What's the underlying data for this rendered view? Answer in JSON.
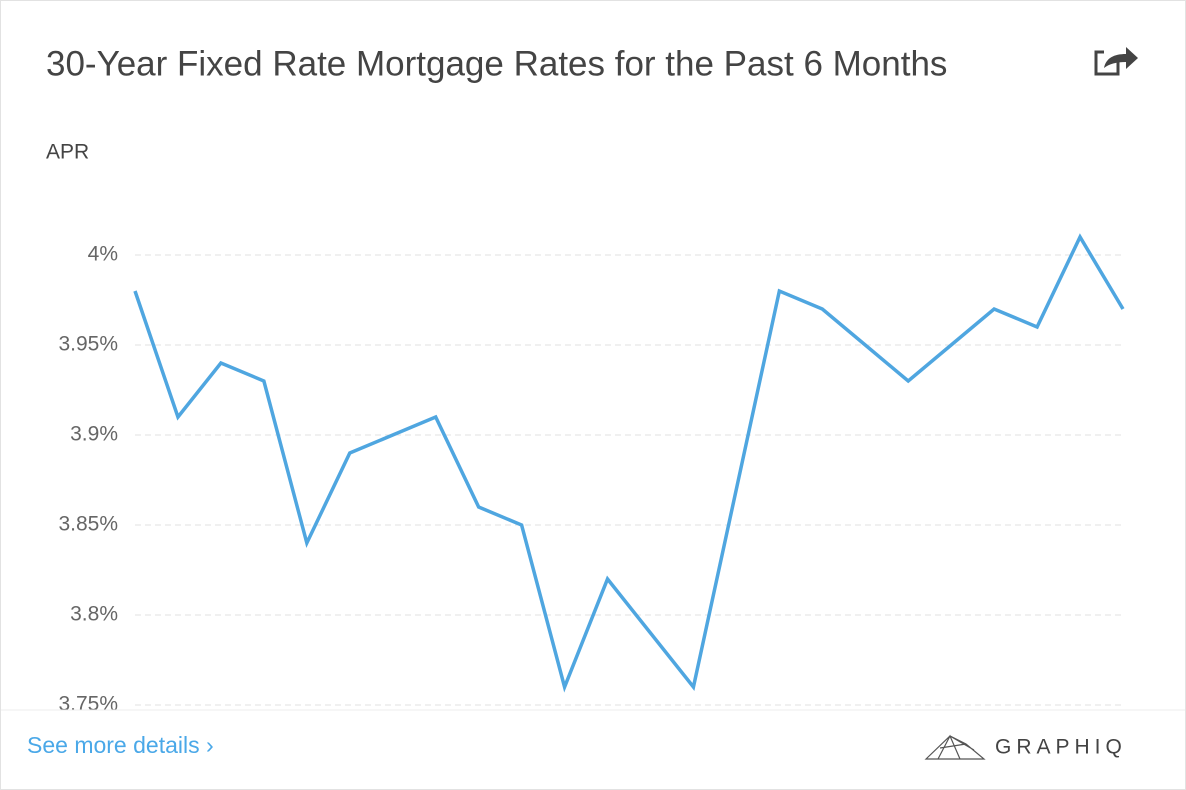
{
  "chart_data": {
    "type": "line",
    "title": "30-Year Fixed Rate Mortgage Rates for the Past 6 Months",
    "y_label": "APR",
    "categories": [
      null,
      null,
      null,
      null,
      null,
      null,
      null,
      null,
      null,
      null,
      null,
      null,
      null,
      null,
      null,
      null,
      null,
      null,
      null,
      null,
      null,
      null,
      null,
      null
    ],
    "values": [
      3.98,
      3.91,
      3.94,
      3.93,
      3.84,
      3.89,
      3.9,
      3.91,
      3.86,
      3.85,
      3.76,
      3.82,
      3.79,
      3.76,
      3.87,
      3.98,
      3.97,
      3.95,
      3.93,
      3.95,
      3.97,
      3.96,
      4.01,
      3.97
    ],
    "color": "#4fa6e0",
    "ylim": [
      3.75,
      4.025
    ],
    "yticks": [
      {
        "value": 3.75,
        "label": "3.75%"
      },
      {
        "value": 3.8,
        "label": "3.8%"
      },
      {
        "value": 3.85,
        "label": "3.85%"
      },
      {
        "value": 3.9,
        "label": "3.9%"
      },
      {
        "value": 3.95,
        "label": "3.95%"
      },
      {
        "value": 4,
        "label": "4%"
      }
    ],
    "grid": true
  },
  "footer": {
    "link": "See more details ›",
    "brand": "GRAPHIQ"
  }
}
